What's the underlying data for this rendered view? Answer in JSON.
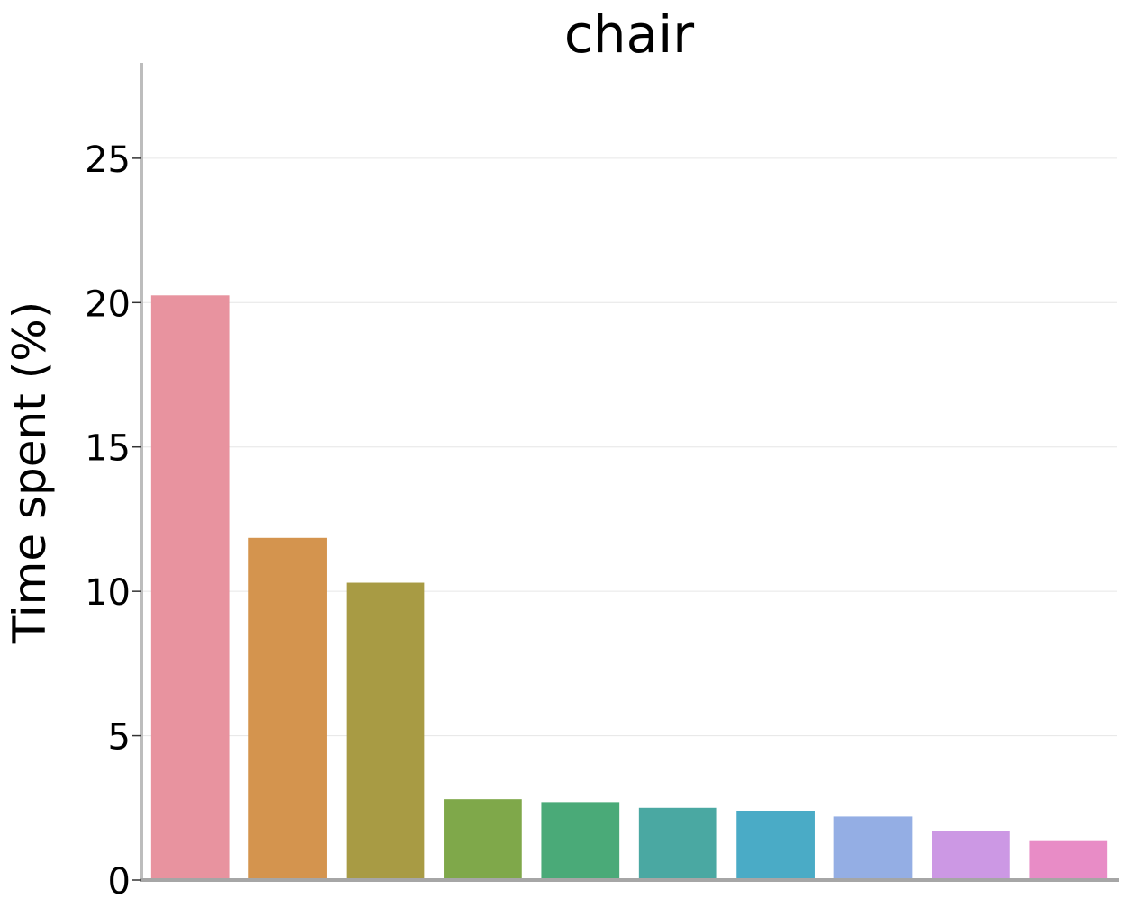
{
  "chart_data": {
    "type": "bar",
    "title": "chair",
    "xlabel": "",
    "ylabel": "Time spent (%)",
    "ylim": [
      0,
      28.3
    ],
    "yticks": [
      0,
      5,
      10,
      15,
      20,
      25
    ],
    "ytick_labels": [
      "0",
      "5",
      "10",
      "15",
      "20",
      "25"
    ],
    "grid": "horizontal",
    "categories": [
      "",
      "",
      "",
      "",
      "",
      "",
      "",
      "",
      "",
      ""
    ],
    "values": [
      20.25,
      11.85,
      10.3,
      2.8,
      2.7,
      2.5,
      2.4,
      2.2,
      1.7,
      1.35
    ],
    "colors": [
      "#e8939f",
      "#d4944e",
      "#a89b44",
      "#7fa84a",
      "#4aaa78",
      "#4aa8a2",
      "#4aabc6",
      "#94aee4",
      "#cc98e4",
      "#e88cc6"
    ]
  }
}
